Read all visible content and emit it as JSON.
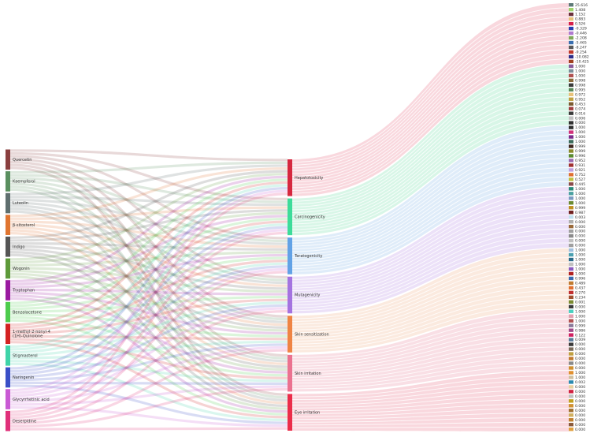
{
  "chart_data": {
    "type": "sankey",
    "sources": [
      {
        "name": "Quercetin",
        "color": "#8a3f3f"
      },
      {
        "name": "Kaempferol",
        "color": "#5a8f5f"
      },
      {
        "name": "Luteolin",
        "color": "#5f6f6f"
      },
      {
        "name": "β-sitosterol",
        "color": "#e07530"
      },
      {
        "name": "Indigo",
        "color": "#555555"
      },
      {
        "name": "Wogonin",
        "color": "#5e9a3a"
      },
      {
        "name": "Tryptophan",
        "color": "#9a1aa0"
      },
      {
        "name": "Benzalacetone",
        "color": "#4dcc4d"
      },
      {
        "name": "1-methyl-2-nonyl-4 (1H)-Quinolone",
        "color": "#d42222"
      },
      {
        "name": "Stigmasterol",
        "color": "#3fd4a8"
      },
      {
        "name": "Naringenin",
        "color": "#3a4fc7"
      },
      {
        "name": "Glycyrrhetinic acid",
        "color": "#c95ad4"
      },
      {
        "name": "Deserpidine",
        "color": "#e0307a"
      }
    ],
    "targets": [
      {
        "name": "Hepatotoxicity",
        "color": "#d6283f"
      },
      {
        "name": "Carcinogenicity",
        "color": "#3ddc9a"
      },
      {
        "name": "Teratogenicity",
        "color": "#62a2e6"
      },
      {
        "name": "Mutagenicity",
        "color": "#a473e0"
      },
      {
        "name": "Skin sensitization",
        "color": "#ef8444"
      },
      {
        "name": "Skin irritation",
        "color": "#eb7290"
      },
      {
        "name": "Eye irritation",
        "color": "#eb2d4a"
      }
    ],
    "value_groups": [
      {
        "target": "Hepatotoxicity",
        "ribbon_color": "#f4b8c2",
        "values": [
          "25.616",
          "1.408",
          "1.152",
          "0.883",
          "0.526",
          "-0.329",
          "-0.446",
          "-2.208",
          "-5.465",
          "-8.247",
          "-9.254",
          "-10.082",
          "-10.425"
        ],
        "swatches": [
          "#5e7a78",
          "#9ed36a",
          "#6b2f3a",
          "#e8c27a",
          "#d61f4a",
          "#2a3fb0",
          "#b07ad0",
          "#7fa85a",
          "#3a6fb0",
          "#5a5a5a",
          "#c0392b",
          "#2e2e8a",
          "#a04020"
        ]
      },
      {
        "target": "Carcinogenicity",
        "ribbon_color": "#b8efd4",
        "values": [
          "1.000",
          "1.000",
          "1.000",
          "0.998",
          "0.998",
          "0.995",
          "0.972",
          "0.952",
          "0.453",
          "0.074",
          "0.016",
          "0.006",
          "0.000"
        ],
        "swatches": [
          "#8a5a9a",
          "#7a8f9a",
          "#b05050",
          "#8a6a3a",
          "#3a3a3a",
          "#5a8a5a",
          "#e8c27a",
          "#c0a040",
          "#7a5a30",
          "#a04040",
          "#3a3a3a",
          "#c0c0c0",
          "#303030"
        ]
      },
      {
        "target": "Teratogenicity",
        "ribbon_color": "#c4dcf4",
        "values": [
          "1.000",
          "1.000",
          "1.000",
          "1.000",
          "0.999",
          "0.999",
          "0.996",
          "0.952",
          "0.931",
          "0.921",
          "0.752",
          "0.527",
          "0.445"
        ],
        "swatches": [
          "#303030",
          "#d0307a",
          "#7a2a8a",
          "#3a6a5a",
          "#402820",
          "#8a8a2a",
          "#5a8a30",
          "#9a6ab0",
          "#a03030",
          "#c0a0e0",
          "#e07030",
          "#c0c040",
          "#8a4a4a"
        ]
      },
      {
        "target": "Mutagenicity",
        "ribbon_color": "#dcc8f2",
        "values": [
          "1.000",
          "1.000",
          "1.000",
          "1.000",
          "0.999",
          "0.987",
          "0.003",
          "0.000",
          "0.000",
          "0.000",
          "0.000",
          "0.000",
          "0.000"
        ],
        "swatches": [
          "#2a8a7a",
          "#4aa0a0",
          "#7a9ac0",
          "#6a8a30",
          "#c09020",
          "#702020",
          "#c0e0f0",
          "#b0b0b0",
          "#9a6a3a",
          "#a0a0a0",
          "#8a8a8a",
          "#c0c0c0",
          "#a0a0a0"
        ]
      },
      {
        "target": "Skin sensitization",
        "ribbon_color": "#f8d8c4",
        "values": [
          "1.000",
          "1.000",
          "1.000",
          "1.000",
          "1.000",
          "1.000",
          "0.996",
          "0.489",
          "0.437",
          "0.270",
          "0.234",
          "0.001",
          "0.000"
        ],
        "swatches": [
          "#a0c0e0",
          "#4aa0b0",
          "#2a6a8a",
          "#c0c0c0",
          "#8a5ac0",
          "#b02020",
          "#3a6ab0",
          "#c07a30",
          "#e07030",
          "#c03030",
          "#a05030",
          "#7a8a30",
          "#3a3a3a"
        ]
      },
      {
        "target": "Skin irritation",
        "ribbon_color": "#f4c4d0",
        "values": [
          "1.000",
          "1.000",
          "1.000",
          "0.999",
          "0.986",
          "0.122",
          "0.009",
          "0.000",
          "0.000",
          "0.000",
          "0.000",
          "0.000",
          "0.000"
        ],
        "swatches": [
          "#4ad0c0",
          "#e0a0b0",
          "#b05050",
          "#8a7a9a",
          "#a04a8a",
          "#d02060",
          "#5a7a9a",
          "#3a3a3a",
          "#7a6a5a",
          "#c0a040",
          "#c07a30",
          "#8a8a8a",
          "#d09030"
        ]
      },
      {
        "target": "Eye irritation",
        "ribbon_color": "#f4b8c2",
        "values": [
          "1.000",
          "1.000",
          "0.002",
          "0.000",
          "0.000",
          "0.000",
          "0.000",
          "0.000",
          "0.000",
          "0.000",
          "0.000",
          "0.000",
          "0.000"
        ],
        "swatches": [
          "#e09030",
          "#d0c0a0",
          "#2a8ab0",
          "#e8d0a0",
          "#d02040",
          "#c0c0c0",
          "#c0a020",
          "#d09030",
          "#a07030",
          "#d0b060",
          "#c08030",
          "#8a5a3a",
          "#e0a040"
        ]
      }
    ]
  }
}
